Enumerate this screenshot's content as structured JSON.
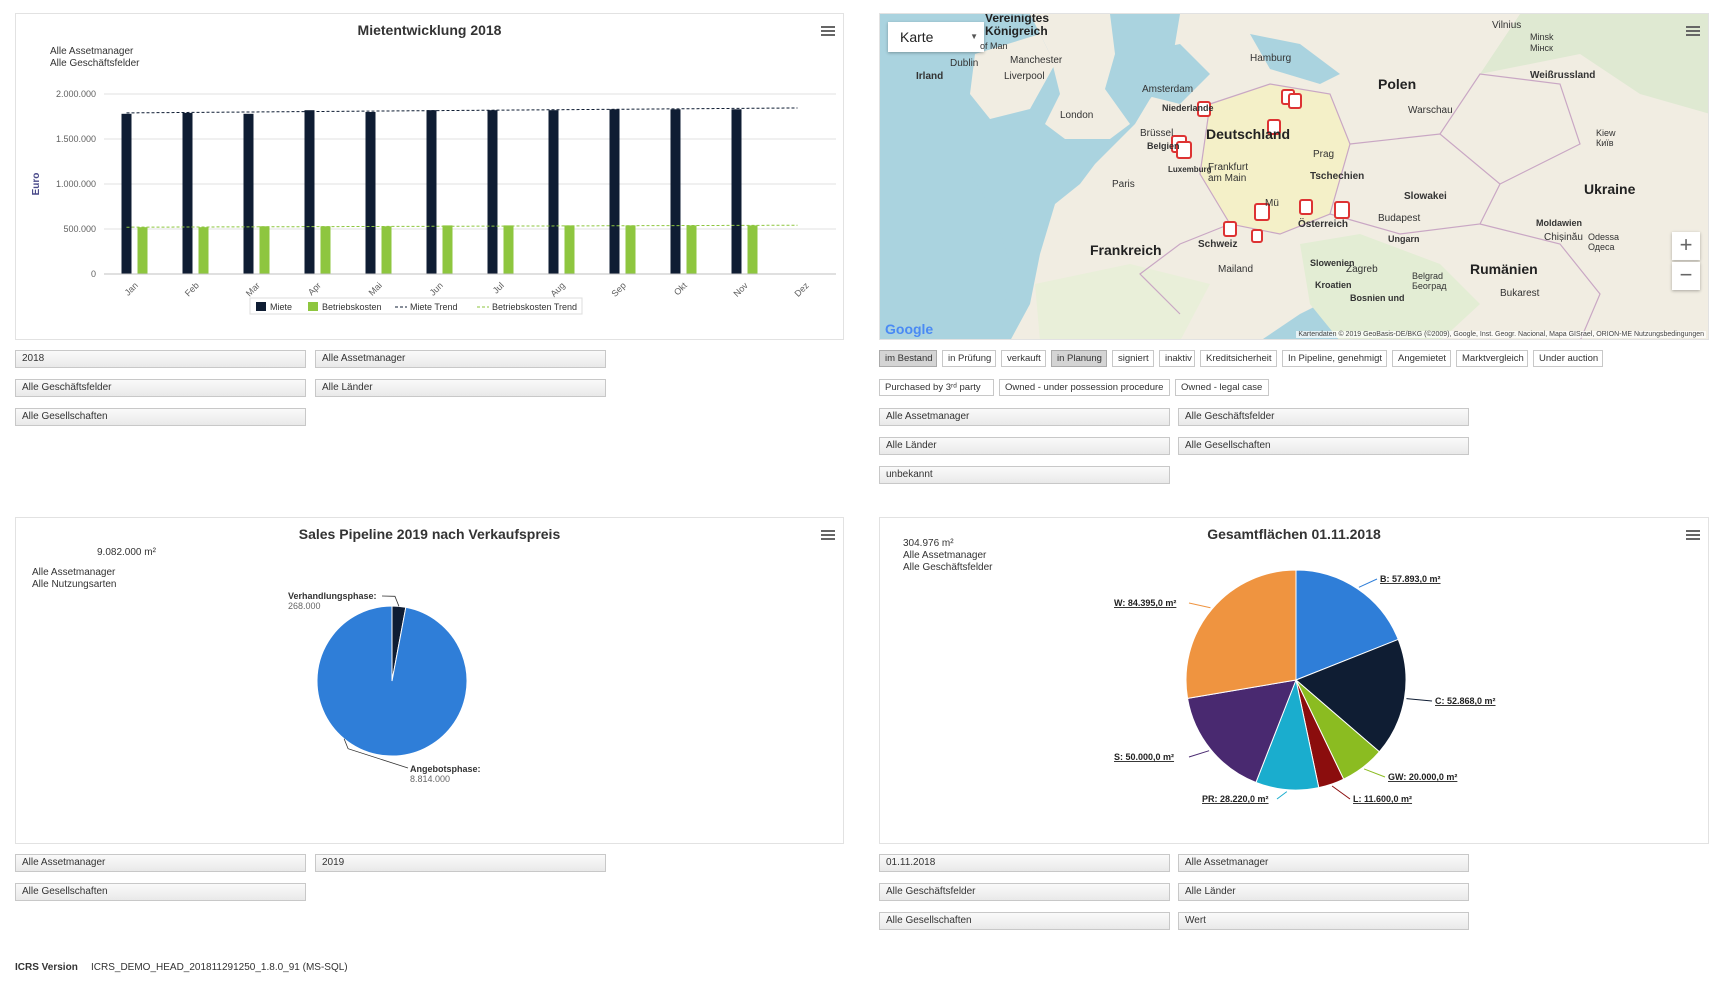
{
  "rent": {
    "title": "Mietentwicklung 2018",
    "subtitle": [
      "Alle Assetmanager",
      "Alle Geschäftsfelder"
    ],
    "controls": [
      "2018",
      "Alle Assetmanager",
      "Alle Geschäftsfelder",
      "Alle Länder",
      "Alle Gesellschaften"
    ]
  },
  "map": {
    "type_select": "Karte",
    "labels": {
      "vk": "Vereinigtes Königreich",
      "irland": "Irland",
      "dublin": "Dublin",
      "manchester": "Manchester",
      "liverpool": "Liverpool",
      "london": "London",
      "hamburg": "Hamburg",
      "amsterdam": "Amsterdam",
      "niederlande": "Niederlande",
      "bruessel": "Brüssel",
      "belgien": "Belgien",
      "luxemburg": "Luxemburg",
      "deutschland": "Deutschland",
      "frankfurt": "Frankfurt am Main",
      "paris": "Paris",
      "frankreich": "Frankreich",
      "schweiz": "Schweiz",
      "mailand": "Mailand",
      "polen": "Polen",
      "warschau": "Warschau",
      "prag": "Prag",
      "tschechien": "Tschechien",
      "slowakei": "Slowakei",
      "oesterreich": "Österreich",
      "budapest": "Budapest",
      "ungarn": "Ungarn",
      "slowenien": "Slowenien",
      "zagreb": "Zagreb",
      "kroatien": "Kroatien",
      "belgrad": "Belgrad Београд",
      "bosnien": "Bosnien und",
      "rumaenien": "Rumänien",
      "bukarest": "Bukarest",
      "ukraine": "Ukraine",
      "kiew": "Kiew Київ",
      "moldawien": "Moldawien",
      "chisinau": "Chișinău",
      "odessa": "Odessa Одеса",
      "weissrussland": "Weißrussland",
      "vilnius": "Vilnius",
      "minsk": "Minsk Мінск",
      "isle": "of Man",
      "muenchen": "Mü"
    },
    "google": "Google",
    "attribution": "Kartendaten © 2019 GeoBasis-DE/BKG (©2009), Google, Inst. Geogr. Nacional, Mapa GISrael, ORION-ME   Nutzungsbedingungen",
    "zoom_in": "+",
    "zoom_out": "−",
    "status_filters": [
      {
        "label": "im Bestand",
        "active": true
      },
      {
        "label": "in Prüfung",
        "active": false
      },
      {
        "label": "verkauft",
        "active": false
      },
      {
        "label": "in Planung",
        "active": true
      },
      {
        "label": "signiert",
        "active": false
      },
      {
        "label": "inaktiv",
        "active": false
      },
      {
        "label": "Kreditsicherheit",
        "active": false
      },
      {
        "label": "In Pipeline, genehmigt",
        "active": false
      },
      {
        "label": "Angemietet",
        "active": false
      },
      {
        "label": "Marktvergleich",
        "active": false
      },
      {
        "label": "Under auction",
        "active": false
      },
      {
        "label": "Purchased by 3ʳᵈ party",
        "active": false
      },
      {
        "label": "Owned - under possession procedure",
        "active": false
      },
      {
        "label": "Owned - legal case",
        "active": false
      }
    ],
    "controls": [
      "Alle Assetmanager",
      "Alle Geschäftsfelder",
      "Alle Länder",
      "Alle Gesellschaften",
      "unbekannt"
    ]
  },
  "sales": {
    "title": "Sales Pipeline 2019 nach Verkaufspreis",
    "total": "9.082.000 m²",
    "subtitle": [
      "Alle Assetmanager",
      "Alle Nutzungsarten"
    ],
    "controls": [
      "Alle Assetmanager",
      "2019",
      "Alle Gesellschaften"
    ]
  },
  "area": {
    "title": "Gesamtflächen 01.11.2018",
    "subtitle": [
      "304.976 m²",
      "Alle Assetmanager",
      "Alle Geschäftsfelder"
    ],
    "controls": [
      "01.11.2018",
      "Alle Assetmanager",
      "Alle Geschäftsfelder",
      "Alle Länder",
      "Alle Gesellschaften",
      "Wert"
    ]
  },
  "footer": {
    "label": "ICRS Version",
    "value": "ICRS_DEMO_HEAD_201811291250_1.8.0_91 (MS-SQL)"
  },
  "colors": {
    "miete": "#0f1d33",
    "betriebskosten": "#8ec63f",
    "pipeline_blue": "#2f7ed8",
    "W": "#ef9440",
    "B": "#2f7ed8",
    "C": "#0f1d33",
    "GW": "#8bbc21",
    "L": "#8b0d0d",
    "PR": "#1aadce",
    "S": "#492970"
  },
  "chart_data": [
    {
      "type": "bar",
      "title": "Mietentwicklung 2018",
      "ylabel": "Euro",
      "categories": [
        "Jan",
        "Feb",
        "Mar",
        "Apr",
        "Mai",
        "Jun",
        "Jul",
        "Aug",
        "Sep",
        "Okt",
        "Nov",
        "Dez"
      ],
      "yticks": [
        "0",
        "500.000",
        "1.000.000",
        "1.500.000",
        "2.000.000"
      ],
      "ylim": [
        0,
        2000000
      ],
      "series": [
        {
          "name": "Miete",
          "values": [
            1780000,
            1790000,
            1780000,
            1820000,
            1800000,
            1820000,
            1820000,
            1820000,
            1830000,
            1830000,
            1830000,
            null
          ]
        },
        {
          "name": "Betriebskosten",
          "values": [
            520000,
            520000,
            530000,
            530000,
            530000,
            540000,
            540000,
            540000,
            540000,
            540000,
            540000,
            null
          ]
        },
        {
          "name": "Miete Trend",
          "values": [
            1790000,
            1795000,
            1800000,
            1805000,
            1810000,
            1815000,
            1820000,
            1825000,
            1830000,
            1835000,
            1840000,
            1845000
          ]
        },
        {
          "name": "Betriebskosten Trend",
          "values": [
            520000,
            522000,
            524000,
            526000,
            528000,
            530000,
            532000,
            534000,
            536000,
            538000,
            540000,
            542000
          ]
        }
      ],
      "legend": "bottom",
      "grid": true
    },
    {
      "type": "pie",
      "title": "Sales Pipeline 2019 nach Verkaufspreis",
      "slices": [
        {
          "name": "Verhandlungsphase",
          "value": 268000,
          "label": "268.000",
          "color": "#0f1d33"
        },
        {
          "name": "Angebotsphase",
          "value": 8814000,
          "label": "8.814.000",
          "color": "#2f7ed8"
        }
      ]
    },
    {
      "type": "pie",
      "title": "Gesamtflächen 01.11.2018",
      "slices": [
        {
          "name": "B",
          "value": 57893,
          "label": "B: 57.893,0 m²",
          "color": "#2f7ed8"
        },
        {
          "name": "C",
          "value": 52868,
          "label": "C: 52.868,0 m²",
          "color": "#0f1d33"
        },
        {
          "name": "GW",
          "value": 20000,
          "label": "GW: 20.000,0 m²",
          "color": "#8bbc21"
        },
        {
          "name": "L",
          "value": 11600,
          "label": "L: 11.600,0 m²",
          "color": "#8b0d0d"
        },
        {
          "name": "PR",
          "value": 28220,
          "label": "PR: 28.220,0 m²",
          "color": "#1aadce"
        },
        {
          "name": "S",
          "value": 50000,
          "label": "S: 50.000,0 m²",
          "color": "#492970"
        },
        {
          "name": "W",
          "value": 84395,
          "label": "W: 84.395,0 m²",
          "color": "#ef9440"
        }
      ]
    }
  ]
}
